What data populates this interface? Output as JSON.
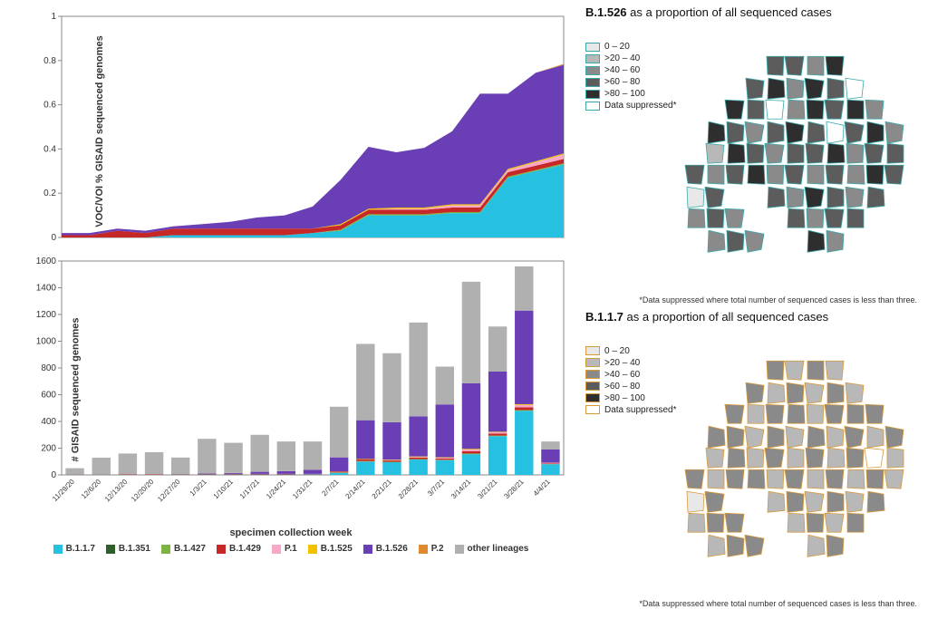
{
  "area_chart": {
    "type": "stacked-area",
    "ylabel": "VOC/VOI % GISAID sequenced genomes",
    "ylim": [
      0,
      1
    ],
    "ytick_step": 0.2,
    "xticks": [
      "11/29/20",
      "12/6/20",
      "12/13/20",
      "12/20/20",
      "12/27/20",
      "1/3/21",
      "1/10/21",
      "1/17/21",
      "1/24/21",
      "1/31/21",
      "2/7/21",
      "2/14/21",
      "2/21/21",
      "2/28/21",
      "3/7/21",
      "3/14/21",
      "3/21/21",
      "3/28/21",
      "4/4/21"
    ],
    "series_order": [
      "B.1.1.7",
      "B.1.351",
      "B.1.427",
      "B.1.429",
      "P.1",
      "B.1.525",
      "B.1.526",
      "P.2"
    ],
    "series": {
      "B.1.1.7": [
        0.0,
        0.0,
        0.0,
        0.0,
        0.01,
        0.01,
        0.01,
        0.01,
        0.01,
        0.02,
        0.03,
        0.1,
        0.1,
        0.1,
        0.11,
        0.11,
        0.27,
        0.3,
        0.33
      ],
      "B.1.351": [
        0.0,
        0.0,
        0.0,
        0.0,
        0.0,
        0.0,
        0.0,
        0.0,
        0.0,
        0.0,
        0.0,
        0.0,
        0.0,
        0.0,
        0.0,
        0.0,
        0.0,
        0.0,
        0.0
      ],
      "B.1.427": [
        0.0,
        0.0,
        0.0,
        0.0,
        0.0,
        0.0,
        0.0,
        0.0,
        0.0,
        0.0,
        0.005,
        0.005,
        0.005,
        0.005,
        0.005,
        0.005,
        0.005,
        0.005,
        0.005
      ],
      "B.1.429": [
        0.01,
        0.01,
        0.03,
        0.02,
        0.03,
        0.03,
        0.03,
        0.03,
        0.03,
        0.02,
        0.02,
        0.02,
        0.02,
        0.02,
        0.02,
        0.02,
        0.02,
        0.02,
        0.02
      ],
      "P.1": [
        0.0,
        0.0,
        0.0,
        0.0,
        0.0,
        0.0,
        0.0,
        0.0,
        0.0,
        0.0,
        0.0,
        0.0,
        0.005,
        0.005,
        0.01,
        0.01,
        0.01,
        0.015,
        0.02
      ],
      "B.1.525": [
        0.0,
        0.0,
        0.0,
        0.0,
        0.0,
        0.0,
        0.0,
        0.0,
        0.0,
        0.0,
        0.005,
        0.005,
        0.005,
        0.005,
        0.005,
        0.005,
        0.005,
        0.005,
        0.005
      ],
      "B.1.526": [
        0.01,
        0.01,
        0.01,
        0.01,
        0.01,
        0.02,
        0.03,
        0.05,
        0.06,
        0.1,
        0.2,
        0.28,
        0.25,
        0.27,
        0.33,
        0.5,
        0.34,
        0.4,
        0.4
      ],
      "P.2": [
        0.0,
        0.0,
        0.0,
        0.0,
        0.0,
        0.0,
        0.0,
        0.0,
        0.0,
        0.0,
        0.0,
        0.0,
        0.0,
        0.0,
        0.0,
        0.0,
        0.0,
        0.0,
        0.005
      ]
    }
  },
  "bar_chart": {
    "type": "stacked-bar",
    "ylabel": "# GISAID sequenced genomes",
    "xlabel": "specimen collection week",
    "ylim": [
      0,
      1600
    ],
    "ytick_step": 200,
    "xticks": [
      "11/29/20",
      "12/6/20",
      "12/13/20",
      "12/20/20",
      "12/27/20",
      "1/3/21",
      "1/10/21",
      "1/17/21",
      "1/24/21",
      "1/31/21",
      "2/7/21",
      "2/14/21",
      "2/21/21",
      "2/28/21",
      "3/7/21",
      "3/14/21",
      "3/21/21",
      "3/28/21",
      "4/4/21"
    ],
    "series_stack_order": [
      "B.1.1.7",
      "B.1.351",
      "B.1.427",
      "B.1.429",
      "P.1",
      "B.1.525",
      "B.1.526",
      "P.2",
      "other lineages"
    ],
    "series": {
      "B.1.1.7": [
        0,
        0,
        0,
        0,
        2,
        3,
        3,
        3,
        3,
        4,
        15,
        100,
        95,
        115,
        110,
        155,
        290,
        480,
        80
      ],
      "B.1.351": [
        0,
        0,
        0,
        0,
        0,
        0,
        0,
        0,
        0,
        0,
        0,
        0,
        0,
        0,
        0,
        0,
        0,
        0,
        0
      ],
      "B.1.427": [
        0,
        0,
        0,
        0,
        0,
        0,
        0,
        0,
        0,
        0,
        3,
        3,
        3,
        3,
        3,
        5,
        4,
        5,
        1
      ],
      "B.1.429": [
        1,
        1,
        3,
        3,
        3,
        4,
        5,
        5,
        5,
        4,
        6,
        12,
        10,
        12,
        10,
        18,
        15,
        20,
        4
      ],
      "P.1": [
        0,
        0,
        0,
        0,
        0,
        0,
        0,
        0,
        0,
        0,
        0,
        0,
        3,
        4,
        6,
        12,
        10,
        18,
        5
      ],
      "B.1.525": [
        0,
        0,
        0,
        0,
        0,
        0,
        0,
        0,
        0,
        0,
        2,
        4,
        3,
        4,
        3,
        5,
        4,
        6,
        1
      ],
      "B.1.526": [
        1,
        1,
        1,
        1,
        1,
        3,
        6,
        15,
        20,
        30,
        105,
        290,
        280,
        300,
        395,
        490,
        450,
        700,
        100
      ],
      "P.2": [
        0,
        0,
        0,
        0,
        0,
        0,
        0,
        0,
        0,
        0,
        0,
        0,
        0,
        0,
        0,
        0,
        0,
        0,
        1
      ],
      "other lineages": [
        48,
        127,
        156,
        166,
        124,
        260,
        226,
        277,
        222,
        212,
        379,
        571,
        516,
        702,
        283,
        760,
        337,
        331,
        58
      ]
    }
  },
  "lineage_colors": {
    "B.1.1.7": "#26c0e0",
    "B.1.351": "#2f5e2a",
    "B.1.427": "#7cb342",
    "B.1.429": "#c62828",
    "P.1": "#f7a8c7",
    "B.1.525": "#f2c200",
    "B.1.526": "#6a3fb5",
    "P.2": "#e08a2e",
    "other lineages": "#b0b0b0"
  },
  "legend_items": [
    "B.1.1.7",
    "B.1.351",
    "B.1.427",
    "B.1.429",
    "P.1",
    "B.1.525",
    "B.1.526",
    "P.2",
    "other lineages"
  ],
  "map1": {
    "title_bold": "B.1.526",
    "title_rest": " as a proportion of all sequenced cases",
    "outline_color": "#3aa8a8",
    "legend": [
      {
        "label": "0 – 20",
        "fill": "#e8e8e8"
      },
      {
        "label": ">20 – 40",
        "fill": "#b8b8b8"
      },
      {
        "label": ">40 – 60",
        "fill": "#8a8a8a"
      },
      {
        "label": ">60 – 80",
        "fill": "#5c5c5c"
      },
      {
        "label": ">80 – 100",
        "fill": "#2e2e2e"
      },
      {
        "label": "Data suppressed*",
        "fill": "#ffffff"
      }
    ],
    "footnote": "*Data suppressed where total number of sequenced cases is less than three.",
    "rows": 9,
    "cols": 11,
    "cell_values": [
      3,
      1,
      4,
      2,
      3,
      3,
      2,
      4,
      3,
      5,
      3,
      2,
      4,
      3,
      3,
      4,
      2,
      4,
      3,
      5,
      2,
      4,
      3,
      2,
      4,
      3,
      5,
      2,
      4,
      3,
      4,
      2,
      3,
      0,
      4,
      3,
      2,
      3,
      4,
      3,
      5,
      3,
      4,
      2,
      0,
      1,
      4,
      3,
      2,
      3,
      3,
      4,
      2,
      3,
      3,
      3,
      2,
      3,
      4,
      2,
      3,
      2,
      3,
      2,
      4,
      3,
      0,
      3,
      4,
      3,
      3,
      2,
      4,
      3,
      2,
      3,
      2,
      2,
      3,
      2,
      3,
      4,
      3,
      2,
      3,
      3,
      2,
      3,
      3,
      2,
      3,
      2,
      3,
      3,
      4,
      2,
      3,
      3,
      2
    ]
  },
  "map2": {
    "title_bold": "B.1.1.7",
    "title_rest": " as a proportion of all sequenced cases",
    "outline_color": "#d69a3a",
    "legend": [
      {
        "label": "0 – 20",
        "fill": "#e8e8e8"
      },
      {
        "label": ">20 – 40",
        "fill": "#b8b8b8"
      },
      {
        "label": ">40 – 60",
        "fill": "#8a8a8a"
      },
      {
        "label": ">60 – 80",
        "fill": "#5c5c5c"
      },
      {
        "label": ">80 – 100",
        "fill": "#2e2e2e"
      },
      {
        "label": "Data suppressed*",
        "fill": "#ffffff"
      }
    ],
    "footnote": "*Data suppressed where total number of sequenced cases is less than three.",
    "rows": 9,
    "cols": 11,
    "cell_values": [
      1,
      0,
      2,
      1,
      2,
      1,
      2,
      1,
      2,
      1,
      2,
      1,
      2,
      1,
      2,
      1,
      2,
      1,
      2,
      1,
      2,
      1,
      2,
      1,
      2,
      1,
      2,
      2,
      1,
      2,
      2,
      2,
      1,
      0,
      2,
      2,
      1,
      2,
      1,
      2,
      1,
      2,
      1,
      2,
      0,
      1,
      2,
      1,
      2,
      1,
      2,
      1,
      2,
      5,
      1,
      2,
      1,
      2,
      2,
      1,
      2,
      1,
      2,
      1,
      2,
      1,
      0,
      2,
      1,
      2,
      1,
      2,
      1,
      2,
      1,
      2,
      1,
      1,
      2,
      2,
      1,
      2,
      1,
      2,
      1,
      2,
      1,
      2,
      2,
      1,
      2,
      2,
      1,
      2,
      1,
      2,
      1,
      2,
      1
    ]
  },
  "common": {
    "axis_color": "#888888",
    "grid_color": "#dddddd",
    "background": "#ffffff"
  }
}
